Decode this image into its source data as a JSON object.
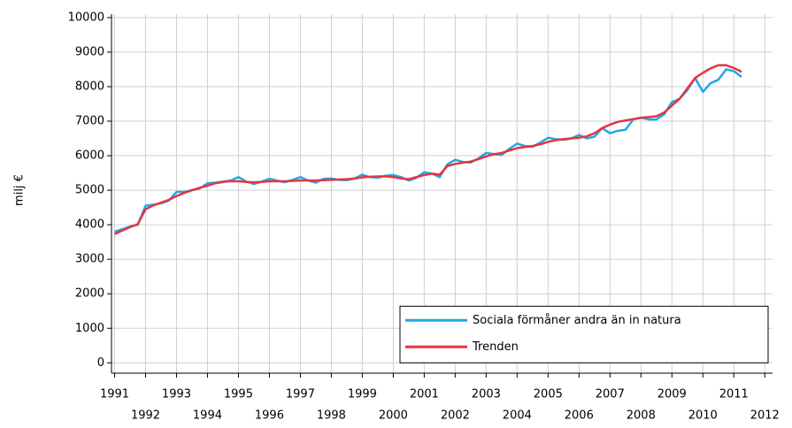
{
  "chart_data": {
    "type": "line",
    "ylabel": "milj €",
    "x": [
      1991,
      1991.25,
      1991.5,
      1991.75,
      1992,
      1992.25,
      1992.5,
      1992.75,
      1993,
      1993.25,
      1993.5,
      1993.75,
      1994,
      1994.25,
      1994.5,
      1994.75,
      1995,
      1995.25,
      1995.5,
      1995.75,
      1996,
      1996.25,
      1996.5,
      1996.75,
      1997,
      1997.25,
      1997.5,
      1997.75,
      1998,
      1998.25,
      1998.5,
      1998.75,
      1999,
      1999.25,
      1999.5,
      1999.75,
      2000,
      2000.25,
      2000.5,
      2000.75,
      2001,
      2001.25,
      2001.5,
      2001.75,
      2002,
      2002.25,
      2002.5,
      2002.75,
      2003,
      2003.25,
      2003.5,
      2003.75,
      2004,
      2004.25,
      2004.5,
      2004.75,
      2005,
      2005.25,
      2005.5,
      2005.75,
      2006,
      2006.25,
      2006.5,
      2006.75,
      2007,
      2007.25,
      2007.5,
      2007.75,
      2008,
      2008.25,
      2008.5,
      2008.75,
      2009,
      2009.25,
      2009.5,
      2009.75,
      2010,
      2010.25,
      2010.5,
      2010.75,
      2011,
      2011.25
    ],
    "series": [
      {
        "name": "Sociala förmåner andra än in natura",
        "color": "#1ea9e6",
        "values": [
          3800,
          3870,
          3950,
          4000,
          4550,
          4580,
          4620,
          4700,
          4950,
          4950,
          5000,
          5050,
          5200,
          5220,
          5250,
          5280,
          5380,
          5250,
          5180,
          5250,
          5330,
          5280,
          5230,
          5300,
          5380,
          5280,
          5220,
          5330,
          5340,
          5300,
          5290,
          5340,
          5450,
          5380,
          5360,
          5420,
          5440,
          5380,
          5280,
          5360,
          5520,
          5480,
          5380,
          5750,
          5880,
          5820,
          5800,
          5920,
          6080,
          6050,
          6020,
          6200,
          6350,
          6280,
          6260,
          6380,
          6520,
          6480,
          6460,
          6500,
          6600,
          6500,
          6550,
          6800,
          6650,
          6720,
          6750,
          7050,
          7100,
          7050,
          7050,
          7200,
          7550,
          7650,
          7900,
          8250,
          7850,
          8100,
          8200,
          8500,
          8450,
          8280
        ]
      },
      {
        "name": "Trenden",
        "color": "#e8343f",
        "values": [
          3730,
          3830,
          3930,
          4020,
          4450,
          4560,
          4640,
          4720,
          4830,
          4920,
          5000,
          5070,
          5130,
          5200,
          5240,
          5260,
          5260,
          5240,
          5230,
          5240,
          5260,
          5260,
          5260,
          5270,
          5280,
          5280,
          5280,
          5290,
          5300,
          5310,
          5320,
          5340,
          5370,
          5390,
          5400,
          5400,
          5380,
          5340,
          5320,
          5380,
          5440,
          5480,
          5450,
          5700,
          5760,
          5800,
          5830,
          5900,
          5980,
          6040,
          6080,
          6150,
          6220,
          6250,
          6280,
          6330,
          6400,
          6450,
          6480,
          6500,
          6520,
          6560,
          6650,
          6800,
          6900,
          6980,
          7020,
          7060,
          7100,
          7120,
          7140,
          7250,
          7450,
          7650,
          7950,
          8250,
          8400,
          8530,
          8620,
          8620,
          8540,
          8430
        ]
      }
    ],
    "xlim": [
      1990.9,
      2012.25
    ],
    "xticks": [
      1991,
      1992,
      1993,
      1994,
      1995,
      1996,
      1997,
      1998,
      1999,
      2000,
      2001,
      2002,
      2003,
      2004,
      2005,
      2006,
      2007,
      2008,
      2009,
      2010,
      2011,
      2012
    ],
    "ylim": [
      -300,
      10100
    ],
    "yticks": [
      0,
      1000,
      2000,
      3000,
      4000,
      5000,
      6000,
      7000,
      8000,
      9000,
      10000
    ],
    "grid": true,
    "legend": "lower right"
  }
}
